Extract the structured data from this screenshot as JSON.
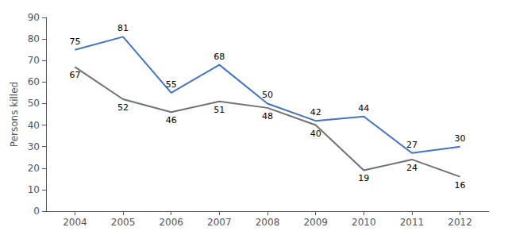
{
  "chart_data": {
    "type": "line",
    "x": [
      2004,
      2005,
      2006,
      2007,
      2008,
      2009,
      2010,
      2011,
      2012
    ],
    "series": [
      {
        "color": "#4472C4",
        "values": [
          75,
          81,
          55,
          68,
          50,
          42,
          44,
          27,
          30
        ]
      },
      {
        "color": "#717171",
        "values": [
          67,
          52,
          46,
          51,
          48,
          40,
          19,
          24,
          16
        ]
      }
    ],
    "xlim": [
      2003.4,
      2012.6
    ],
    "xticks": [
      2004,
      2005,
      2006,
      2007,
      2008,
      2009,
      2010,
      2011,
      2012
    ],
    "ylim": [
      0,
      90
    ],
    "yticks": [
      0,
      10,
      20,
      30,
      40,
      50,
      60,
      70,
      80,
      90
    ],
    "ylabel": "Persons killed",
    "grid": false,
    "data_labels": true
  }
}
